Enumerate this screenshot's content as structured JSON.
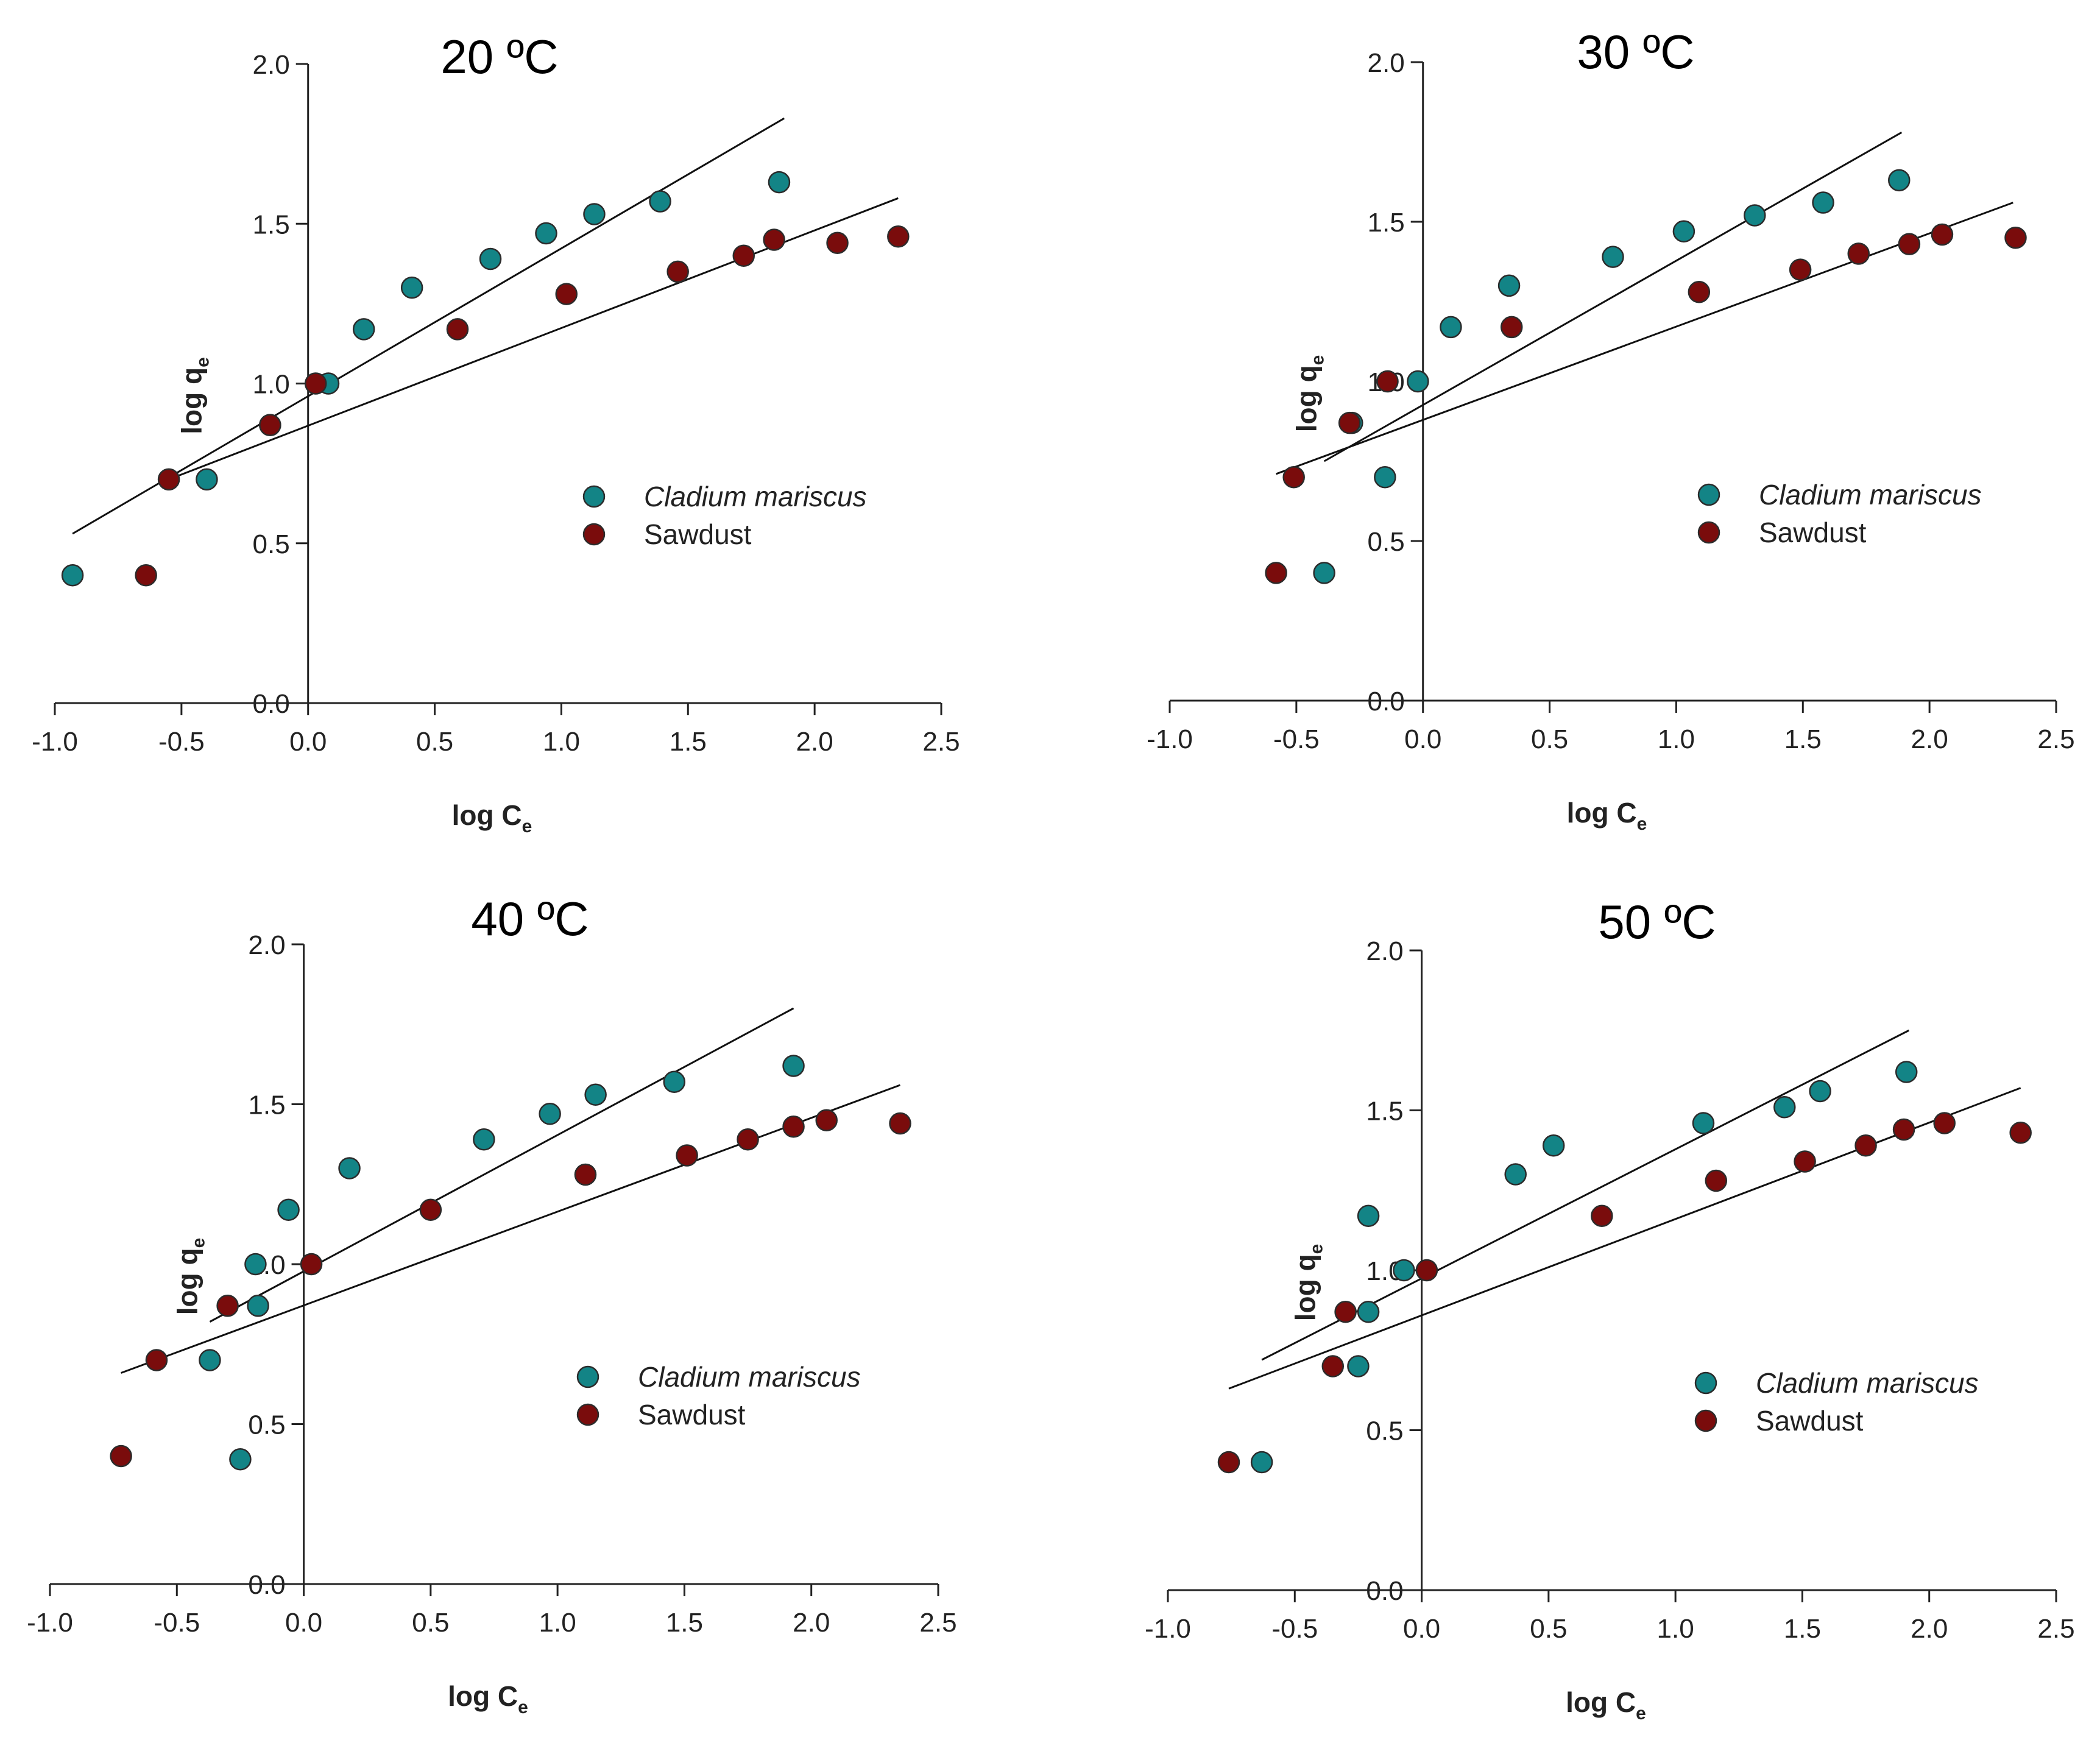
{
  "figure": {
    "series_names": [
      "Cladium mariscus",
      "Sawdust"
    ],
    "series_colors": [
      "#138486",
      "#7a0c0c"
    ],
    "marker_edge_color": "#2b2b2b",
    "axis_color": "#222222"
  },
  "chart_data": [
    {
      "type": "scatter",
      "title": "20 ºC",
      "xlabel_main": "log C",
      "xlabel_sub": "e",
      "ylabel_main": "log q",
      "ylabel_sub": "e",
      "xlim": [
        -1.0,
        2.5
      ],
      "ylim": [
        0.0,
        2.0
      ],
      "xticks": [
        "-1.0",
        "-0.5",
        "0.0",
        "0.5",
        "1.0",
        "1.5",
        "2.0",
        "2.5"
      ],
      "yticks": [
        "0.0",
        "0.5",
        "1.0",
        "1.5",
        "2.0"
      ],
      "legend_position": "right",
      "series": [
        {
          "name": "Cladium mariscus",
          "italic": true,
          "x": [
            -0.93,
            -0.4,
            -0.15,
            0.08,
            0.22,
            0.41,
            0.72,
            0.94,
            1.13,
            1.39,
            1.86
          ],
          "y": [
            0.4,
            0.7,
            0.87,
            1.0,
            1.17,
            1.3,
            1.39,
            1.47,
            1.53,
            1.57,
            1.63
          ],
          "fit": {
            "x": [
              -0.93,
              1.88
            ],
            "y": [
              0.53,
              1.83
            ]
          }
        },
        {
          "name": "Sawdust",
          "italic": false,
          "x": [
            -0.64,
            -0.55,
            -0.15,
            0.03,
            0.59,
            1.02,
            1.46,
            1.72,
            1.84,
            2.09,
            2.33
          ],
          "y": [
            0.4,
            0.7,
            0.87,
            1.0,
            1.17,
            1.28,
            1.35,
            1.4,
            1.45,
            1.44,
            1.46
          ],
          "fit": {
            "x": [
              -0.55,
              2.33
            ],
            "y": [
              0.7,
              1.58
            ]
          }
        }
      ]
    },
    {
      "type": "scatter",
      "title": "30 ºC",
      "xlabel_main": "log C",
      "xlabel_sub": "e",
      "ylabel_main": "log q",
      "ylabel_sub": "e",
      "xlim": [
        -1.0,
        2.5
      ],
      "ylim": [
        0.0,
        2.0
      ],
      "xticks": [
        "-1.0",
        "-0.5",
        "0.0",
        "0.5",
        "1.0",
        "1.5",
        "2.0",
        "2.5"
      ],
      "yticks": [
        "0.0",
        "0.5",
        "1.0",
        "1.5",
        "2.0"
      ],
      "legend_position": "right",
      "series": [
        {
          "name": "Cladium mariscus",
          "italic": true,
          "x": [
            -0.39,
            -0.28,
            -0.15,
            -0.02,
            0.11,
            0.34,
            0.75,
            1.03,
            1.31,
            1.58,
            1.88
          ],
          "y": [
            0.4,
            0.87,
            0.7,
            1.0,
            1.17,
            1.3,
            1.39,
            1.47,
            1.52,
            1.56,
            1.63
          ],
          "fit": {
            "x": [
              -0.39,
              1.89
            ],
            "y": [
              0.75,
              1.78
            ]
          }
        },
        {
          "name": "Sawdust",
          "italic": false,
          "x": [
            -0.58,
            -0.51,
            -0.29,
            -0.14,
            0.35,
            1.09,
            1.49,
            1.72,
            1.92,
            2.05,
            2.34
          ],
          "y": [
            0.4,
            0.7,
            0.87,
            1.0,
            1.17,
            1.28,
            1.35,
            1.4,
            1.43,
            1.46,
            1.45
          ],
          "fit": {
            "x": [
              -0.58,
              2.33
            ],
            "y": [
              0.71,
              1.56
            ]
          }
        }
      ]
    },
    {
      "type": "scatter",
      "title": "40 ºC",
      "xlabel_main": "log C",
      "xlabel_sub": "e",
      "ylabel_main": "log q",
      "ylabel_sub": "e",
      "xlim": [
        -1.0,
        2.5
      ],
      "ylim": [
        0.0,
        2.0
      ],
      "xticks": [
        "-1.0",
        "-0.5",
        "0.0",
        "0.5",
        "1.0",
        "1.5",
        "2.0",
        "2.5"
      ],
      "yticks": [
        "0.0",
        "0.5",
        "1.0",
        "1.5",
        "2.0"
      ],
      "legend_position": "right",
      "series": [
        {
          "name": "Cladium mariscus",
          "italic": true,
          "x": [
            -0.25,
            -0.37,
            -0.18,
            -0.19,
            -0.06,
            0.18,
            0.71,
            0.97,
            1.15,
            1.46,
            1.93
          ],
          "y": [
            0.39,
            0.7,
            0.87,
            1.0,
            1.17,
            1.3,
            1.39,
            1.47,
            1.53,
            1.57,
            1.62
          ],
          "fit": {
            "x": [
              -0.37,
              1.93
            ],
            "y": [
              0.82,
              1.8
            ]
          }
        },
        {
          "name": "Sawdust",
          "italic": false,
          "x": [
            -0.72,
            -0.58,
            -0.3,
            0.03,
            0.5,
            1.11,
            1.51,
            1.75,
            1.93,
            2.06,
            2.35
          ],
          "y": [
            0.4,
            0.7,
            0.87,
            1.0,
            1.17,
            1.28,
            1.34,
            1.39,
            1.43,
            1.45,
            1.44
          ],
          "fit": {
            "x": [
              -0.72,
              2.35
            ],
            "y": [
              0.66,
              1.56
            ]
          }
        }
      ]
    },
    {
      "type": "scatter",
      "title": "50 ºC",
      "xlabel_main": "log C",
      "xlabel_sub": "e",
      "ylabel_main": "log q",
      "ylabel_sub": "e",
      "xlim": [
        -1.0,
        2.5
      ],
      "ylim": [
        0.0,
        2.0
      ],
      "xticks": [
        "-1.0",
        "-0.5",
        "0.0",
        "0.5",
        "1.0",
        "1.5",
        "2.0",
        "2.5"
      ],
      "yticks": [
        "0.0",
        "0.5",
        "1.0",
        "1.5",
        "2.0"
      ],
      "legend_position": "right",
      "series": [
        {
          "name": "Cladium mariscus",
          "italic": true,
          "x": [
            -0.63,
            -0.25,
            -0.21,
            -0.21,
            -0.07,
            0.37,
            0.52,
            1.11,
            1.43,
            1.57,
            1.91
          ],
          "y": [
            0.4,
            0.7,
            0.87,
            1.17,
            1.0,
            1.3,
            1.39,
            1.46,
            1.51,
            1.56,
            1.62
          ],
          "fit": {
            "x": [
              -0.63,
              1.92
            ],
            "y": [
              0.72,
              1.75
            ]
          }
        },
        {
          "name": "Sawdust",
          "italic": false,
          "x": [
            -0.76,
            -0.35,
            -0.3,
            0.02,
            0.71,
            1.16,
            1.51,
            1.75,
            1.9,
            2.06,
            2.36
          ],
          "y": [
            0.4,
            0.7,
            0.87,
            1.0,
            1.17,
            1.28,
            1.34,
            1.39,
            1.44,
            1.46,
            1.43
          ],
          "fit": {
            "x": [
              -0.76,
              2.36
            ],
            "y": [
              0.63,
              1.57
            ]
          }
        }
      ]
    }
  ]
}
